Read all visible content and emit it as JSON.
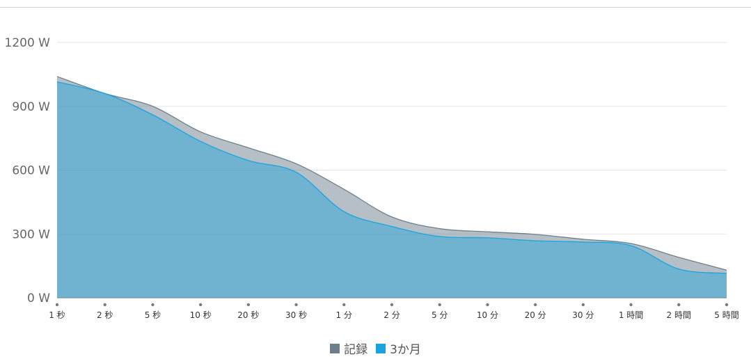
{
  "chart_data": {
    "type": "area",
    "categories": [
      "1 秒",
      "2 秒",
      "5 秒",
      "10 秒",
      "20 秒",
      "30 秒",
      "1 分",
      "2 分",
      "5 分",
      "10 分",
      "20 分",
      "30 分",
      "1 時間",
      "2 時間",
      "5 時間"
    ],
    "y_ticks": [
      "0 W",
      "300 W",
      "600 W",
      "900 W",
      "1200 W"
    ],
    "ylim": [
      0,
      1200
    ],
    "grid": true,
    "legend_position": "bottom-center",
    "series": [
      {
        "name": "記録",
        "values": [
          1040,
          960,
          900,
          780,
          705,
          630,
          510,
          380,
          325,
          310,
          298,
          275,
          255,
          190,
          130
        ],
        "color": "#6e7f8c"
      },
      {
        "name": "3か月",
        "values": [
          1015,
          960,
          860,
          735,
          645,
          590,
          405,
          335,
          288,
          282,
          268,
          262,
          245,
          135,
          115
        ],
        "color": "#1aa3e0"
      }
    ]
  }
}
